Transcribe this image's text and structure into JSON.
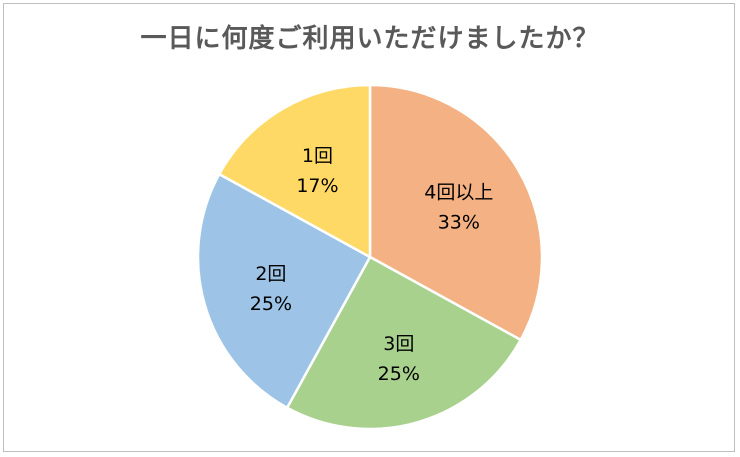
{
  "chart_data": {
    "type": "pie",
    "title": "一日に何度ご利用いただけましたか？",
    "slices": [
      {
        "label": "4回以上",
        "percent_label": "33%",
        "value": 33,
        "color": "#f4b183"
      },
      {
        "label": "3回",
        "percent_label": "25%",
        "value": 25,
        "color": "#a9d18e"
      },
      {
        "label": "2回",
        "percent_label": "25%",
        "value": 25,
        "color": "#9dc3e6"
      },
      {
        "label": "1回",
        "percent_label": "17%",
        "value": 17,
        "color": "#ffd966"
      }
    ],
    "start_angle_deg": 0,
    "direction": "clockwise",
    "slice_border_color": "#ffffff",
    "legend": "none"
  }
}
